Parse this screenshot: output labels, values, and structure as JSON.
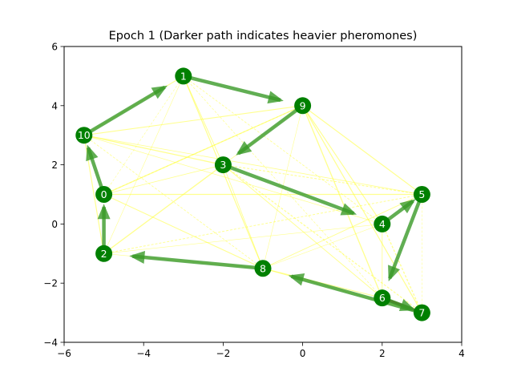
{
  "chart_data": {
    "type": "graph",
    "title": "Epoch 1 (Darker path indicates heavier pheromones)",
    "xlim": [
      -6,
      4
    ],
    "ylim": [
      -4,
      6
    ],
    "xticks": [
      -6,
      -4,
      -2,
      0,
      2,
      4
    ],
    "yticks": [
      -4,
      -2,
      0,
      2,
      4,
      6
    ],
    "xticklabels": [
      "−6",
      "−4",
      "−2",
      "0",
      "2",
      "4"
    ],
    "yticklabels": [
      "−4",
      "−2",
      "0",
      "2",
      "4",
      "6"
    ],
    "grid": false,
    "nodes": [
      {
        "id": "0",
        "x": -5.0,
        "y": 1.0
      },
      {
        "id": "1",
        "x": -3.0,
        "y": 5.0
      },
      {
        "id": "2",
        "x": -5.0,
        "y": -1.0
      },
      {
        "id": "3",
        "x": -2.0,
        "y": 2.0
      },
      {
        "id": "4",
        "x": 2.0,
        "y": 0.0
      },
      {
        "id": "5",
        "x": 3.0,
        "y": 1.0
      },
      {
        "id": "6",
        "x": 2.0,
        "y": -2.5
      },
      {
        "id": "7",
        "x": 3.0,
        "y": -3.0
      },
      {
        "id": "8",
        "x": -1.0,
        "y": -1.5
      },
      {
        "id": "9",
        "x": 0.0,
        "y": 4.0
      },
      {
        "id": "10",
        "x": -5.5,
        "y": 3.0
      }
    ],
    "tour": [
      "2",
      "0",
      "10",
      "1",
      "9",
      "3",
      "4",
      "5",
      "6",
      "7",
      "8",
      "2"
    ],
    "pheromone_edges": [
      [
        "0",
        "1"
      ],
      [
        "0",
        "3"
      ],
      [
        "0",
        "8"
      ],
      [
        "0",
        "5"
      ],
      [
        "0",
        "9"
      ],
      [
        "1",
        "3"
      ],
      [
        "1",
        "8"
      ],
      [
        "1",
        "2"
      ],
      [
        "1",
        "4"
      ],
      [
        "1",
        "10"
      ],
      [
        "2",
        "3"
      ],
      [
        "2",
        "8"
      ],
      [
        "2",
        "5"
      ],
      [
        "2",
        "10"
      ],
      [
        "2",
        "4"
      ],
      [
        "3",
        "8"
      ],
      [
        "3",
        "5"
      ],
      [
        "3",
        "10"
      ],
      [
        "3",
        "9"
      ],
      [
        "3",
        "6"
      ],
      [
        "3",
        "7"
      ],
      [
        "4",
        "8"
      ],
      [
        "4",
        "6"
      ],
      [
        "4",
        "9"
      ],
      [
        "4",
        "7"
      ],
      [
        "4",
        "10"
      ],
      [
        "5",
        "8"
      ],
      [
        "5",
        "9"
      ],
      [
        "5",
        "7"
      ],
      [
        "5",
        "10"
      ],
      [
        "6",
        "8"
      ],
      [
        "6",
        "9"
      ],
      [
        "6",
        "1"
      ],
      [
        "7",
        "8"
      ],
      [
        "7",
        "9"
      ],
      [
        "8",
        "9"
      ],
      [
        "8",
        "10"
      ],
      [
        "9",
        "10"
      ],
      [
        "9",
        "0"
      ]
    ],
    "colors": {
      "node": "#008000",
      "node_label": "#ffffff",
      "tour_edge": "#3a9a28",
      "pheromone_edge": "#ffff33",
      "pheromone_strong": "#8b1a1a"
    }
  }
}
